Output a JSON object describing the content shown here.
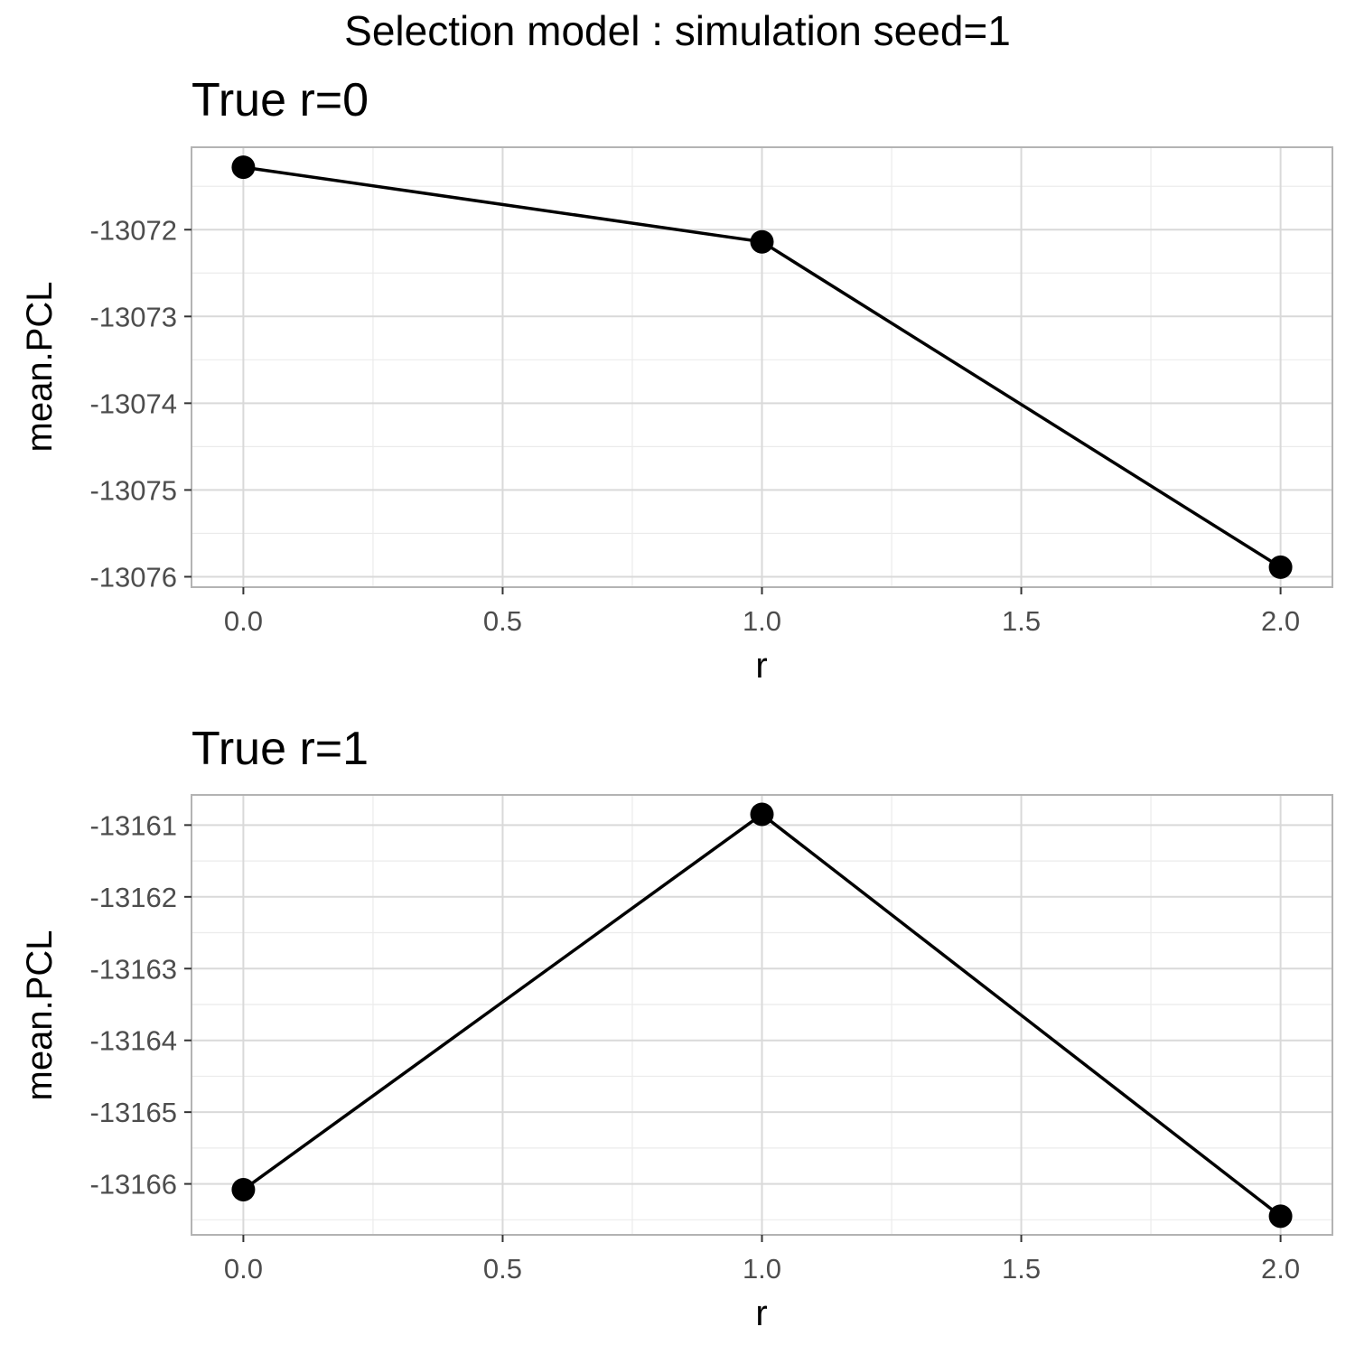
{
  "figure": {
    "title": "Selection model : simulation seed=1"
  },
  "chart_data": [
    {
      "type": "line",
      "title": "True r=0",
      "xlabel": "r",
      "ylabel": "mean.PCL",
      "x": [
        0.0,
        1.0,
        2.0
      ],
      "values": [
        -13071.28,
        -13072.14,
        -13075.89
      ],
      "xlim": [
        -0.1,
        2.1
      ],
      "ylim": [
        -13076.12,
        -13071.05
      ],
      "xticks": [
        0.0,
        0.5,
        1.0,
        1.5,
        2.0
      ],
      "xtick_labels": [
        "0.0",
        "0.5",
        "1.0",
        "1.5",
        "2.0"
      ],
      "yticks": [
        -13072,
        -13073,
        -13074,
        -13075,
        -13076
      ],
      "ytick_labels": [
        "-13072",
        "-13073",
        "-13074",
        "-13075",
        "-13076"
      ],
      "grid": true,
      "marker_color": "#000000",
      "line_color": "#000000"
    },
    {
      "type": "line",
      "title": "True r=1",
      "xlabel": "r",
      "ylabel": "mean.PCL",
      "x": [
        0.0,
        1.0,
        2.0
      ],
      "values": [
        -13166.08,
        -13160.85,
        -13166.45
      ],
      "xlim": [
        -0.1,
        2.1
      ],
      "ylim": [
        -13166.71,
        -13160.58
      ],
      "xticks": [
        0.0,
        0.5,
        1.0,
        1.5,
        2.0
      ],
      "xtick_labels": [
        "0.0",
        "0.5",
        "1.0",
        "1.5",
        "2.0"
      ],
      "yticks": [
        -13161,
        -13162,
        -13163,
        -13164,
        -13165,
        -13166
      ],
      "ytick_labels": [
        "-13161",
        "-13162",
        "-13163",
        "-13164",
        "-13165",
        "-13166"
      ],
      "grid": true,
      "marker_color": "#000000",
      "line_color": "#000000"
    }
  ]
}
